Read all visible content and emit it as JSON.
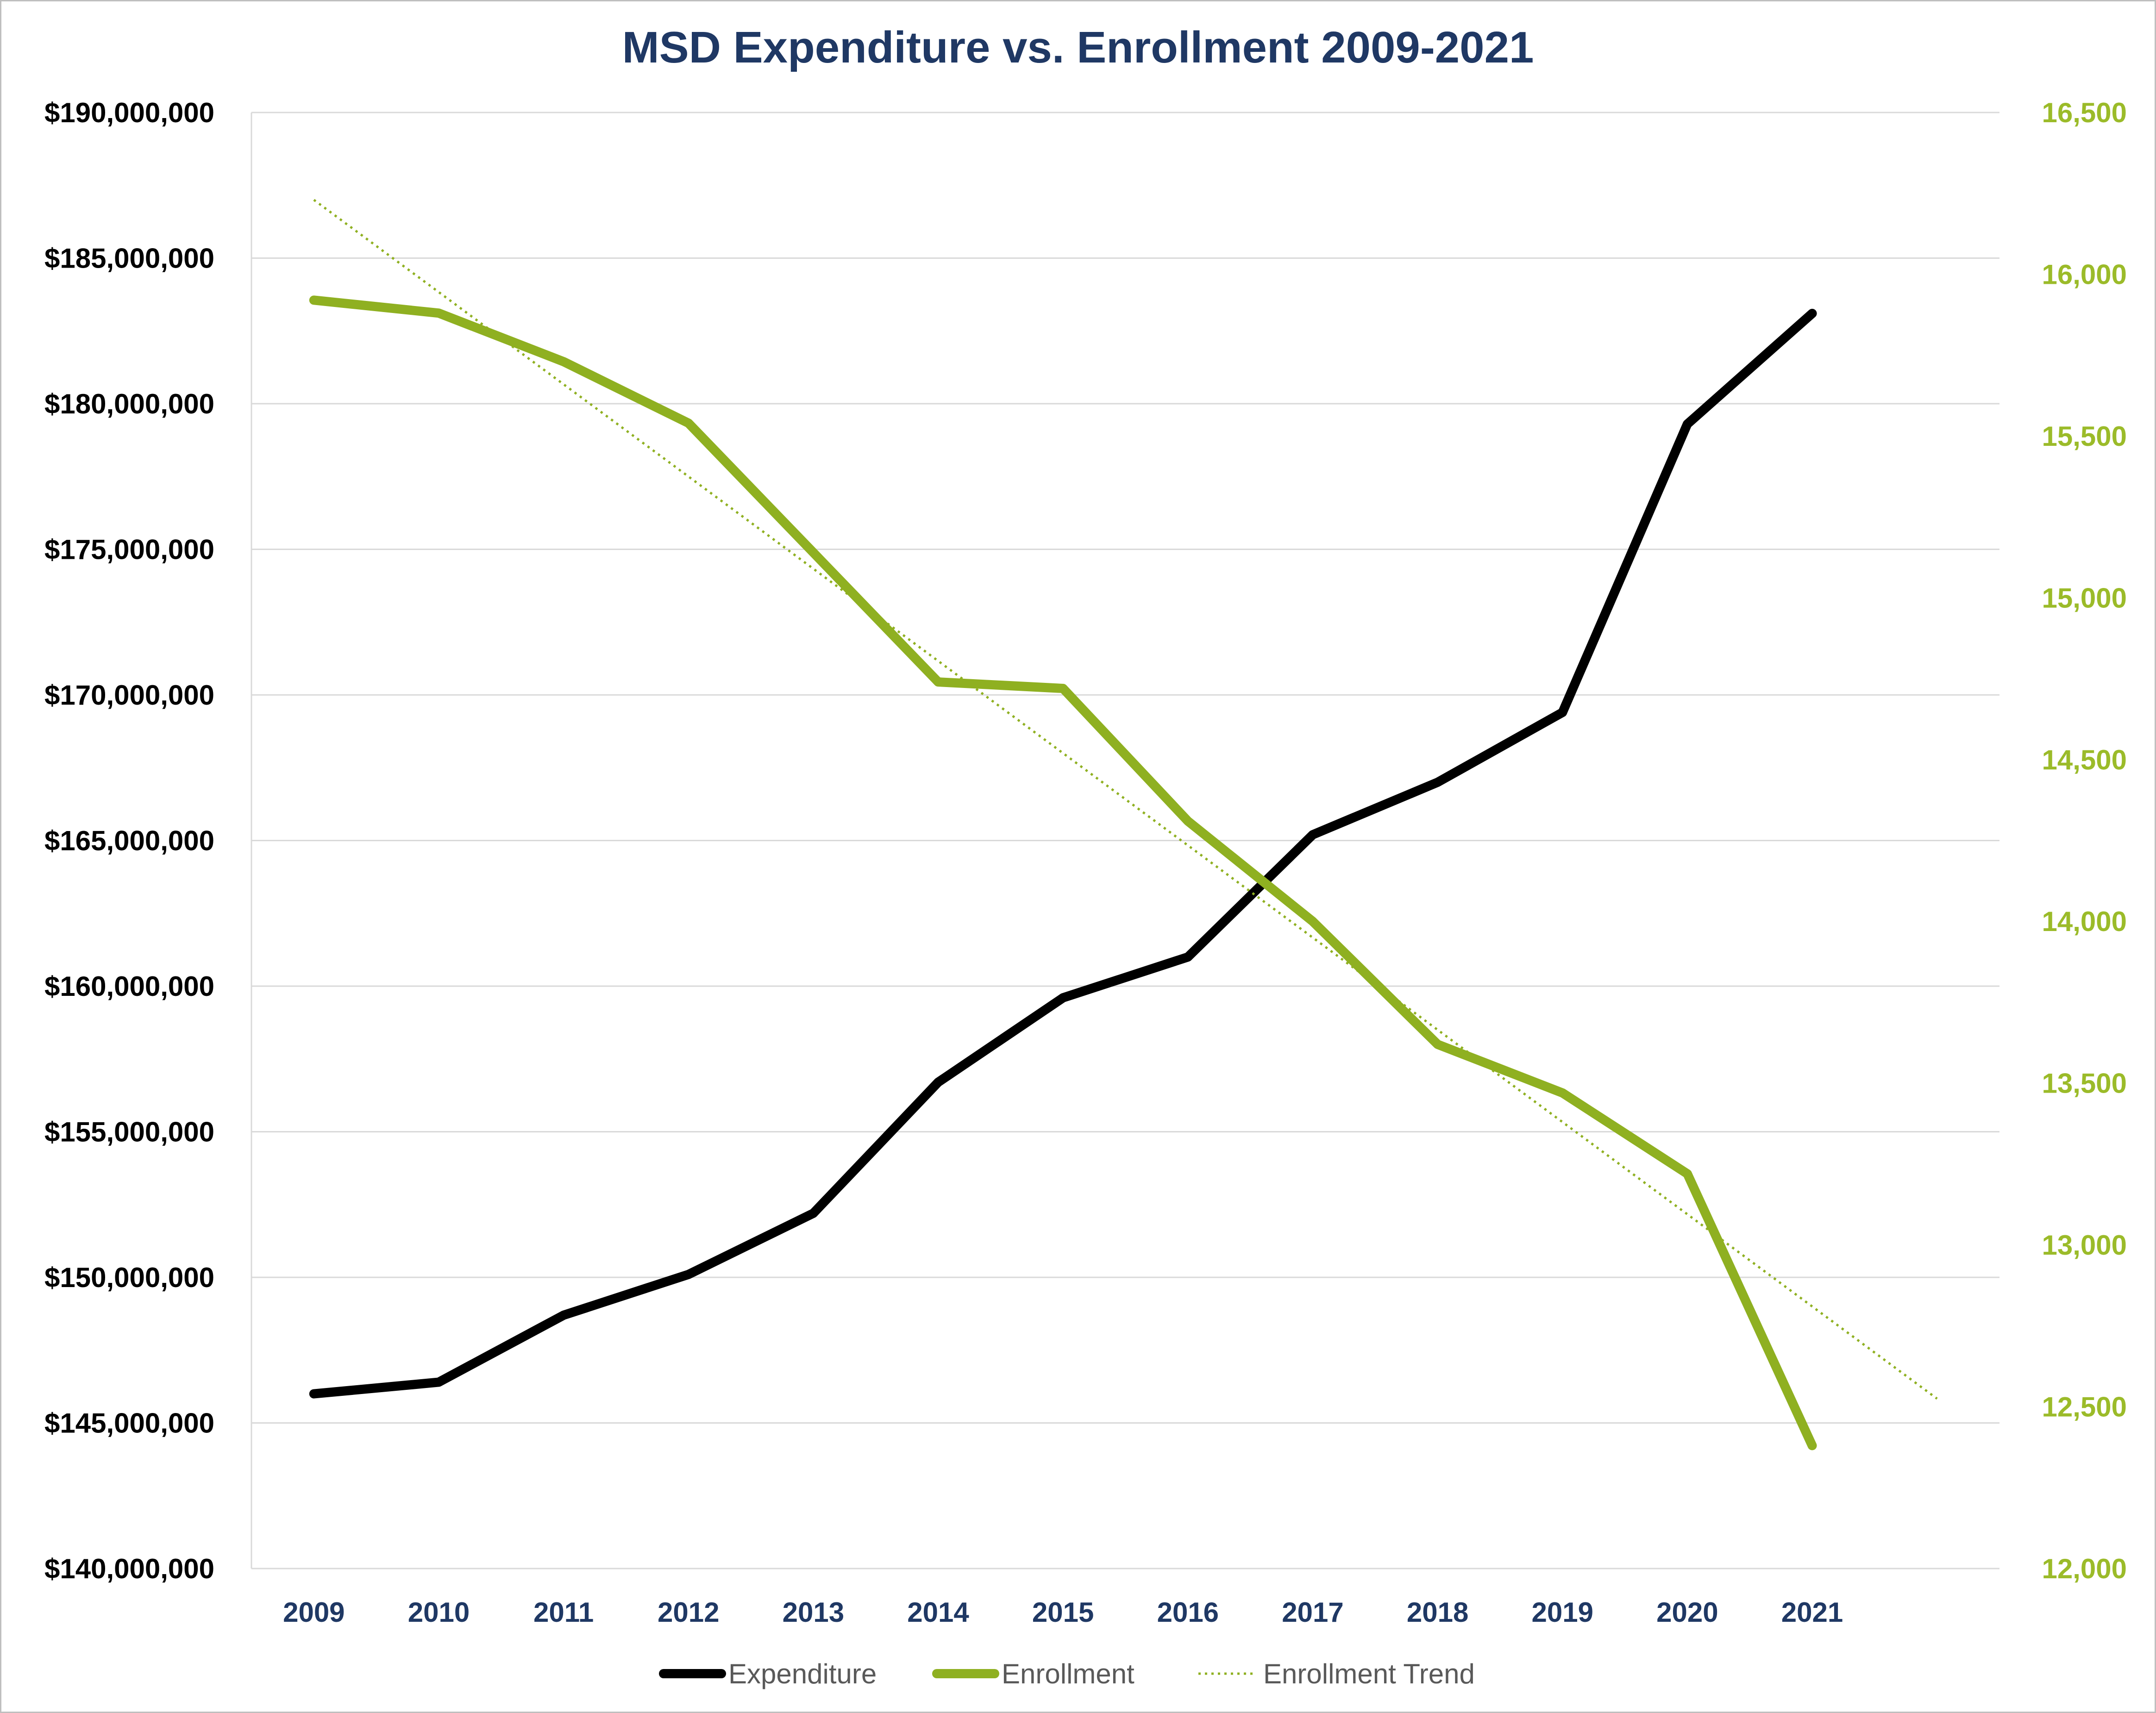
{
  "chart_data": {
    "type": "line",
    "title": "MSD Expenditure vs. Enrollment 2009-2021",
    "categories": [
      "2009",
      "2010",
      "2011",
      "2012",
      "2013",
      "2014",
      "2015",
      "2016",
      "2017",
      "2018",
      "2019",
      "2020",
      "2021"
    ],
    "xlabel": "",
    "y_left": {
      "label": "",
      "min": 140000000,
      "max": 190000000,
      "step": 5000000,
      "tick_labels": [
        "$140,000,000",
        "$145,000,000",
        "$150,000,000",
        "$155,000,000",
        "$160,000,000",
        "$165,000,000",
        "$170,000,000",
        "$175,000,000",
        "$180,000,000",
        "$185,000,000",
        "$190,000,000"
      ]
    },
    "y_right": {
      "label": "",
      "min": 12000,
      "max": 16500,
      "step": 500,
      "tick_labels": [
        "12,000",
        "12,500",
        "13,000",
        "13,500",
        "14,000",
        "14,500",
        "15,000",
        "15,500",
        "16,000",
        "16,500"
      ]
    },
    "grid": true,
    "legend_position": "bottom",
    "series": [
      {
        "name": "Expenditure",
        "axis": "left",
        "color": "#000000",
        "style": "solid",
        "values": [
          146000000,
          146400000,
          148700000,
          150100000,
          152200000,
          156700000,
          159600000,
          161000000,
          165200000,
          167000000,
          169400000,
          179300000,
          183100000
        ]
      },
      {
        "name": "Enrollment",
        "axis": "right",
        "color": "#8fb021",
        "style": "solid",
        "values": [
          15920,
          15880,
          15730,
          15540,
          15140,
          14740,
          14720,
          14310,
          14000,
          13620,
          13470,
          13220,
          12380
        ]
      },
      {
        "name": "Enrollment Trend",
        "axis": "right",
        "color": "#8fb021",
        "style": "dotted",
        "trend_start": 16230,
        "trend_slope_per_year": -285,
        "x_extent_years": 13
      }
    ]
  },
  "colors": {
    "title": "#1f3864",
    "left_axis_text": "#000000",
    "right_axis_text": "#9bbb29",
    "x_axis_text": "#1f3864",
    "gridline": "#d9d9d9",
    "legend_text": "#595959"
  }
}
